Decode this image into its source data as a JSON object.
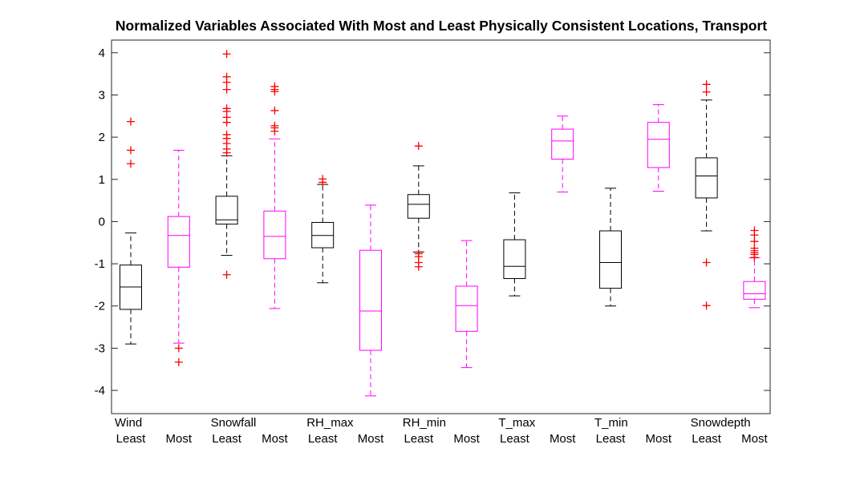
{
  "chart_data": {
    "type": "box",
    "title": "Normalized Variables Associated With Most and Least Physically Consistent Locations, Transport",
    "xlabel": "",
    "ylabel": "",
    "ylim": [
      -4.55,
      4.3
    ],
    "yticks": [
      "4",
      "3",
      "2",
      "1",
      "0",
      "-1",
      "-2",
      "-3",
      "-4"
    ],
    "ytick_values": [
      4,
      3,
      2,
      1,
      0,
      -1,
      -2,
      -3,
      -4
    ],
    "grid": false,
    "legend": "none",
    "colors": {
      "Least": "#000000",
      "Most": "#ff00ff",
      "outlier": "#ff0000"
    },
    "groups": [
      {
        "name": "Wind",
        "boxes": [
          {
            "label": "Least",
            "whisker_low": -2.9,
            "q1": -2.08,
            "median": -1.55,
            "q3": -1.03,
            "whisker_high": -0.27,
            "outliers": [
              1.37,
              1.69,
              2.37
            ]
          },
          {
            "label": "Most",
            "whisker_low": -2.88,
            "q1": -1.08,
            "median": -0.33,
            "q3": 0.12,
            "whisker_high": 1.69,
            "outliers": [
              -3.0,
              -3.33
            ]
          }
        ]
      },
      {
        "name": "Snowfall",
        "boxes": [
          {
            "label": "Least",
            "whisker_low": -0.8,
            "q1": -0.06,
            "median": 0.04,
            "q3": 0.6,
            "whisker_high": 1.56,
            "outliers": [
              -1.26,
              1.63,
              1.72,
              1.85,
              1.97,
              2.06,
              2.35,
              2.47,
              2.61,
              2.68,
              3.13,
              3.3,
              3.43,
              3.97
            ]
          },
          {
            "label": "Most",
            "whisker_low": -2.06,
            "q1": -0.88,
            "median": -0.35,
            "q3": 0.25,
            "whisker_high": 1.96,
            "outliers": [
              2.14,
              2.22,
              2.27,
              2.63,
              3.08,
              3.13,
              3.2
            ]
          }
        ]
      },
      {
        "name": "RH_max",
        "boxes": [
          {
            "label": "Least",
            "whisker_low": -1.45,
            "q1": -0.62,
            "median": -0.33,
            "q3": -0.02,
            "whisker_high": 0.88,
            "outliers": [
              0.93,
              1.01
            ]
          },
          {
            "label": "Most",
            "whisker_low": -4.13,
            "q1": -3.05,
            "median": -2.12,
            "q3": -0.68,
            "whisker_high": 0.39,
            "outliers": []
          }
        ]
      },
      {
        "name": "RH_min",
        "boxes": [
          {
            "label": "Least",
            "whisker_low": -0.72,
            "q1": 0.08,
            "median": 0.41,
            "q3": 0.64,
            "whisker_high": 1.32,
            "outliers": [
              -0.76,
              -0.83,
              -0.97,
              -1.07,
              1.79
            ]
          },
          {
            "label": "Most",
            "whisker_low": -3.46,
            "q1": -2.6,
            "median": -1.99,
            "q3": -1.53,
            "whisker_high": -0.45,
            "outliers": []
          }
        ]
      },
      {
        "name": "T_max",
        "boxes": [
          {
            "label": "Least",
            "whisker_low": -1.76,
            "q1": -1.35,
            "median": -1.06,
            "q3": -0.43,
            "whisker_high": 0.68,
            "outliers": []
          },
          {
            "label": "Most",
            "whisker_low": 0.7,
            "q1": 1.48,
            "median": 1.91,
            "q3": 2.19,
            "whisker_high": 2.5,
            "outliers": []
          }
        ]
      },
      {
        "name": "T_min",
        "boxes": [
          {
            "label": "Least",
            "whisker_low": -2.0,
            "q1": -1.58,
            "median": -0.97,
            "q3": -0.22,
            "whisker_high": 0.79,
            "outliers": []
          },
          {
            "label": "Most",
            "whisker_low": 0.72,
            "q1": 1.28,
            "median": 1.95,
            "q3": 2.35,
            "whisker_high": 2.77,
            "outliers": []
          }
        ]
      },
      {
        "name": "Snowdepth",
        "boxes": [
          {
            "label": "Least",
            "whisker_low": -0.22,
            "q1": 0.56,
            "median": 1.08,
            "q3": 1.51,
            "whisker_high": 2.88,
            "outliers": [
              -0.97,
              -1.99,
              3.07,
              3.25
            ]
          },
          {
            "label": "Most",
            "whisker_low": -2.04,
            "q1": -1.84,
            "median": -1.71,
            "q3": -1.42,
            "whisker_high": -0.86,
            "outliers": [
              -0.63,
              -0.69,
              -0.74,
              -0.78,
              -0.85,
              -0.47,
              -0.32,
              -0.21
            ]
          }
        ]
      }
    ]
  }
}
